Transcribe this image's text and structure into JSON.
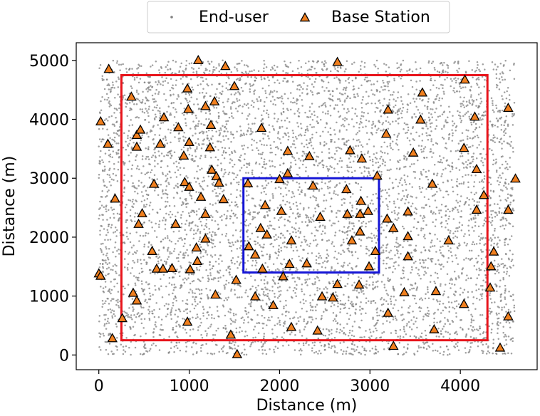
{
  "chart_data": {
    "type": "scatter",
    "xlabel": "Distance (m)",
    "ylabel": "Distance (m)",
    "xlim": [
      -250,
      4850
    ],
    "ylim": [
      -250,
      5300
    ],
    "xticks": [
      0,
      1000,
      2000,
      3000,
      4000
    ],
    "yticks": [
      0,
      1000,
      2000,
      3000,
      4000,
      5000
    ],
    "grid": false,
    "legend": {
      "placement": "top-center",
      "entries": [
        "End-user",
        "Base Station"
      ]
    },
    "colors": {
      "end_user": "#808080",
      "base_station_fill": "#f07f1e",
      "base_station_edge": "#000000",
      "outer_region": "#e8141b",
      "inner_region": "#1515d6"
    },
    "regions": [
      {
        "color": "red",
        "x0": 250,
        "y0": 250,
        "x1": 4300,
        "y1": 4750
      },
      {
        "color": "blue",
        "x0": 1600,
        "y0": 1400,
        "x1": 3100,
        "y1": 3000
      }
    ],
    "end_user_distribution": {
      "x_range": [
        0,
        4600
      ],
      "y_range": [
        0,
        5000
      ],
      "approx_count": 6000
    },
    "series": [
      {
        "name": "Base Station",
        "points": [
          [
            110,
            4850
          ],
          [
            1100,
            5000
          ],
          [
            1400,
            4900
          ],
          [
            2640,
            4970
          ],
          [
            360,
            4380
          ],
          [
            980,
            4520
          ],
          [
            1500,
            4560
          ],
          [
            4050,
            4670
          ],
          [
            3580,
            4450
          ],
          [
            20,
            3960
          ],
          [
            720,
            4030
          ],
          [
            1180,
            4220
          ],
          [
            1280,
            4300
          ],
          [
            1240,
            3900
          ],
          [
            1800,
            3850
          ],
          [
            990,
            4170
          ],
          [
            3200,
            4160
          ],
          [
            3560,
            3990
          ],
          [
            4160,
            4040
          ],
          [
            4530,
            4190
          ],
          [
            420,
            3730
          ],
          [
            460,
            3820
          ],
          [
            100,
            3580
          ],
          [
            420,
            3530
          ],
          [
            680,
            3580
          ],
          [
            880,
            3860
          ],
          [
            1000,
            3610
          ],
          [
            940,
            3380
          ],
          [
            1230,
            3520
          ],
          [
            2090,
            3460
          ],
          [
            2330,
            3370
          ],
          [
            2780,
            3470
          ],
          [
            2910,
            3330
          ],
          [
            3180,
            3750
          ],
          [
            3480,
            3430
          ],
          [
            4040,
            3510
          ],
          [
            4180,
            3150
          ],
          [
            4610,
            2990
          ],
          [
            3080,
            3040
          ],
          [
            1250,
            3140
          ],
          [
            1300,
            3030
          ],
          [
            1330,
            2920
          ],
          [
            2090,
            3080
          ],
          [
            1650,
            2910
          ],
          [
            2000,
            2980
          ],
          [
            2370,
            2870
          ],
          [
            2740,
            2810
          ],
          [
            2900,
            2610
          ],
          [
            180,
            2650
          ],
          [
            610,
            2900
          ],
          [
            950,
            2930
          ],
          [
            1000,
            2850
          ],
          [
            1130,
            2680
          ],
          [
            1380,
            2640
          ],
          [
            3690,
            2900
          ],
          [
            4260,
            2710
          ],
          [
            1840,
            2540
          ],
          [
            2020,
            2440
          ],
          [
            2450,
            2340
          ],
          [
            2750,
            2390
          ],
          [
            2890,
            2390
          ],
          [
            2980,
            2440
          ],
          [
            480,
            2400
          ],
          [
            440,
            2220
          ],
          [
            850,
            2220
          ],
          [
            1180,
            2390
          ],
          [
            3190,
            2310
          ],
          [
            3420,
            2430
          ],
          [
            4180,
            2460
          ],
          [
            4530,
            2460
          ],
          [
            1790,
            2150
          ],
          [
            1860,
            2040
          ],
          [
            2130,
            1940
          ],
          [
            2800,
            1940
          ],
          [
            2890,
            2090
          ],
          [
            3260,
            2150
          ],
          [
            3420,
            2010
          ],
          [
            3870,
            1940
          ],
          [
            590,
            1760
          ],
          [
            1080,
            1820
          ],
          [
            1180,
            1970
          ],
          [
            1660,
            1840
          ],
          [
            1730,
            1700
          ],
          [
            3060,
            1760
          ],
          [
            3420,
            1670
          ],
          [
            4370,
            1750
          ],
          [
            640,
            1460
          ],
          [
            710,
            1460
          ],
          [
            810,
            1470
          ],
          [
            1090,
            1590
          ],
          [
            1810,
            1460
          ],
          [
            2110,
            1540
          ],
          [
            2300,
            1550
          ],
          [
            2990,
            1500
          ],
          [
            4340,
            1500
          ],
          [
            0,
            1380
          ],
          [
            20,
            1340
          ],
          [
            1010,
            1450
          ],
          [
            1520,
            1270
          ],
          [
            2040,
            1330
          ],
          [
            2640,
            1200
          ],
          [
            2880,
            1190
          ],
          [
            380,
            1050
          ],
          [
            420,
            920
          ],
          [
            1290,
            1020
          ],
          [
            1730,
            990
          ],
          [
            2470,
            990
          ],
          [
            2590,
            970
          ],
          [
            3380,
            1060
          ],
          [
            3730,
            1080
          ],
          [
            4330,
            1140
          ],
          [
            260,
            620
          ],
          [
            980,
            560
          ],
          [
            1930,
            840
          ],
          [
            3200,
            710
          ],
          [
            4040,
            860
          ],
          [
            4530,
            650
          ],
          [
            150,
            280
          ],
          [
            1460,
            340
          ],
          [
            2130,
            470
          ],
          [
            2420,
            410
          ],
          [
            3710,
            430
          ],
          [
            1530,
            10
          ],
          [
            3260,
            150
          ],
          [
            4440,
            120
          ]
        ]
      }
    ]
  }
}
